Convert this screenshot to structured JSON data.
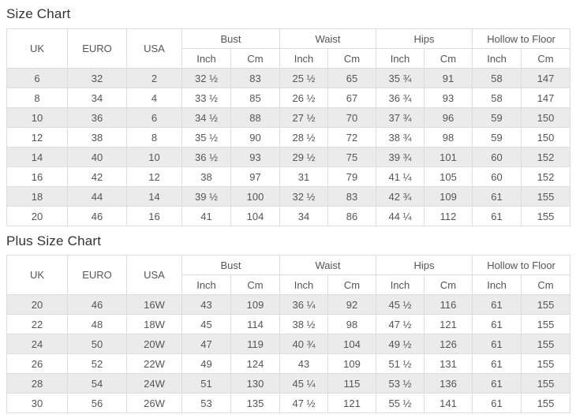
{
  "colors": {
    "page_background": "#ffffff",
    "table_border": "#dddddd",
    "row_stripe": "#ebebeb",
    "cell_text": "#555555",
    "title_text": "#333333"
  },
  "tables": [
    {
      "title": "Size Chart",
      "headers": {
        "simple": [
          "UK",
          "EURO",
          "USA"
        ],
        "grouped": [
          "Bust",
          "Waist",
          "Hips",
          "Hollow to Floor"
        ],
        "units": [
          "Inch",
          "Cm"
        ]
      },
      "rows": [
        [
          "6",
          "32",
          "2",
          "32 ½",
          "83",
          "25 ½",
          "65",
          "35 ¾",
          "91",
          "58",
          "147"
        ],
        [
          "8",
          "34",
          "4",
          "33 ½",
          "85",
          "26 ½",
          "67",
          "36 ¾",
          "93",
          "58",
          "147"
        ],
        [
          "10",
          "36",
          "6",
          "34 ½",
          "88",
          "27 ½",
          "70",
          "37 ¾",
          "96",
          "59",
          "150"
        ],
        [
          "12",
          "38",
          "8",
          "35 ½",
          "90",
          "28 ½",
          "72",
          "38 ¾",
          "98",
          "59",
          "150"
        ],
        [
          "14",
          "40",
          "10",
          "36 ½",
          "93",
          "29 ½",
          "75",
          "39 ¾",
          "101",
          "60",
          "152"
        ],
        [
          "16",
          "42",
          "12",
          "38",
          "97",
          "31",
          "79",
          "41 ¼",
          "105",
          "60",
          "152"
        ],
        [
          "18",
          "44",
          "14",
          "39 ½",
          "100",
          "32 ½",
          "83",
          "42 ¾",
          "109",
          "61",
          "155"
        ],
        [
          "20",
          "46",
          "16",
          "41",
          "104",
          "34",
          "86",
          "44 ¼",
          "112",
          "61",
          "155"
        ]
      ]
    },
    {
      "title": "Plus Size Chart",
      "headers": {
        "simple": [
          "UK",
          "EURO",
          "USA"
        ],
        "grouped": [
          "Bust",
          "Waist",
          "Hips",
          "Hollow to Floor"
        ],
        "units": [
          "Inch",
          "Cm"
        ]
      },
      "rows": [
        [
          "20",
          "46",
          "16W",
          "43",
          "109",
          "36 ¼",
          "92",
          "45 ½",
          "116",
          "61",
          "155"
        ],
        [
          "22",
          "48",
          "18W",
          "45",
          "114",
          "38 ½",
          "98",
          "47 ½",
          "121",
          "61",
          "155"
        ],
        [
          "24",
          "50",
          "20W",
          "47",
          "119",
          "40 ¾",
          "104",
          "49 ½",
          "126",
          "61",
          "155"
        ],
        [
          "26",
          "52",
          "22W",
          "49",
          "124",
          "43",
          "109",
          "51 ½",
          "131",
          "61",
          "155"
        ],
        [
          "28",
          "54",
          "24W",
          "51",
          "130",
          "45 ¼",
          "115",
          "53 ½",
          "136",
          "61",
          "155"
        ],
        [
          "30",
          "56",
          "26W",
          "53",
          "135",
          "47 ½",
          "121",
          "55 ½",
          "141",
          "61",
          "155"
        ]
      ]
    }
  ]
}
